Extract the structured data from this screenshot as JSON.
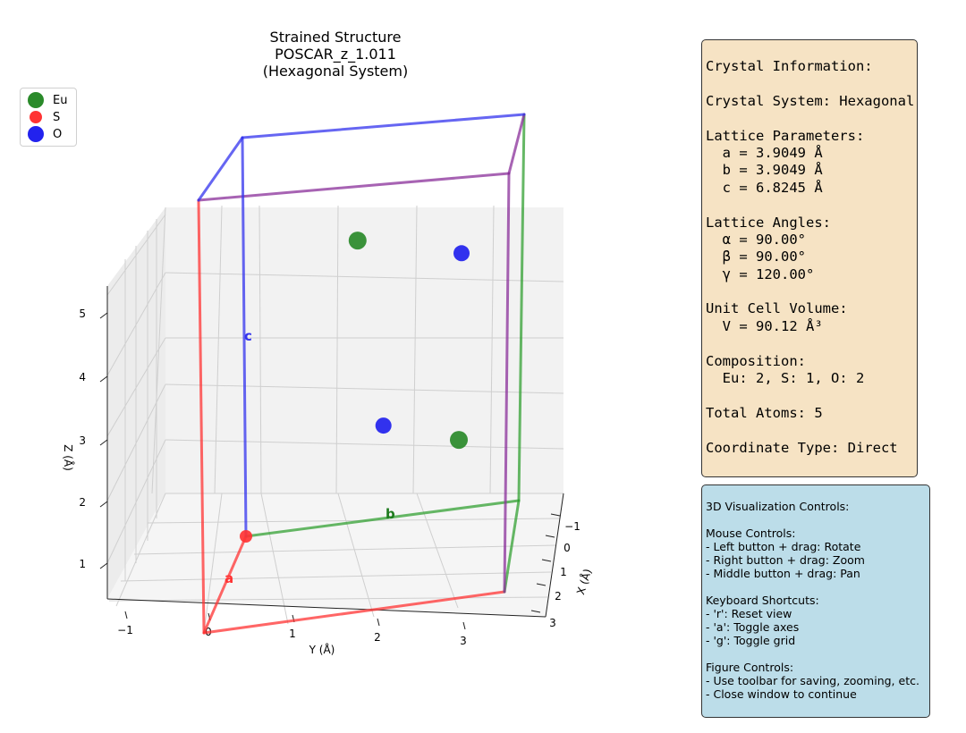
{
  "colors": {
    "Eu": "#2a8a2a",
    "S": "#ff3333",
    "O": "#2222ee",
    "a_axis": "#ff3333",
    "b_axis": "#33a033",
    "c_axis": "#3333ee",
    "top_edge": "#8a2f9a",
    "crystal_box_bg": "#f6e3c4",
    "controls_box_bg": "#bcdde9"
  },
  "chart_data": {
    "type": "scatter3d",
    "title_lines": [
      "Strained Structure",
      "POSCAR_z_1.011",
      "(Hexagonal System)"
    ],
    "xlabel": "X (Å)",
    "ylabel": "Y (Å)",
    "zlabel": "Z (Å)",
    "x_ticks": [
      "−1",
      "0",
      "1",
      "2",
      "3"
    ],
    "y_ticks": [
      "−1",
      "0",
      "1",
      "2",
      "3"
    ],
    "z_ticks": [
      "1",
      "2",
      "3",
      "4",
      "5"
    ],
    "legend": [
      "Eu",
      "S",
      "O"
    ],
    "legend_placement": "top-left",
    "grid": true,
    "lattice_vectors": [
      {
        "name": "a",
        "label": "a",
        "vector": [
          3.9049,
          0,
          0
        ]
      },
      {
        "name": "b",
        "label": "b",
        "vector": [
          -1.95245,
          3.3817,
          0
        ]
      },
      {
        "name": "c",
        "label": "c",
        "vector": [
          0,
          0,
          6.8245
        ]
      }
    ],
    "atoms": [
      {
        "element": "S",
        "x": 0.0,
        "y": 0.0,
        "z": 0.0
      },
      {
        "element": "O",
        "x": 0.33,
        "y": 1.66,
        "z": 1.8
      },
      {
        "element": "Eu",
        "x": 1.15,
        "y": 2.65,
        "z": 1.75
      },
      {
        "element": "Eu",
        "x": -0.5,
        "y": 1.25,
        "z": 4.7
      },
      {
        "element": "O",
        "x": 0.5,
        "y": 2.6,
        "z": 4.7
      }
    ]
  },
  "crystal_info": {
    "lines": [
      "Crystal Information:",
      "",
      "Crystal System: Hexagonal",
      "",
      "Lattice Parameters:",
      "  a = 3.9049 Å",
      "  b = 3.9049 Å",
      "  c = 6.8245 Å",
      "",
      "Lattice Angles:",
      "  α = 90.00°",
      "  β = 90.00°",
      "  γ = 120.00°",
      "",
      "Unit Cell Volume:",
      "  V = 90.12 Å³",
      "",
      "Composition:",
      "  Eu: 2, S: 1, O: 2",
      "",
      "Total Atoms: 5",
      "",
      "Coordinate Type: Direct"
    ]
  },
  "controls_info": {
    "lines": [
      "3D Visualization Controls:",
      "",
      "Mouse Controls:",
      "- Left button + drag: Rotate",
      "- Right button + drag: Zoom",
      "- Middle button + drag: Pan",
      "",
      "Keyboard Shortcuts:",
      "- 'r': Reset view",
      "- 'a': Toggle axes",
      "- 'g': Toggle grid",
      "",
      "Figure Controls:",
      "- Use toolbar for saving, zooming, etc.",
      "- Close window to continue"
    ]
  }
}
